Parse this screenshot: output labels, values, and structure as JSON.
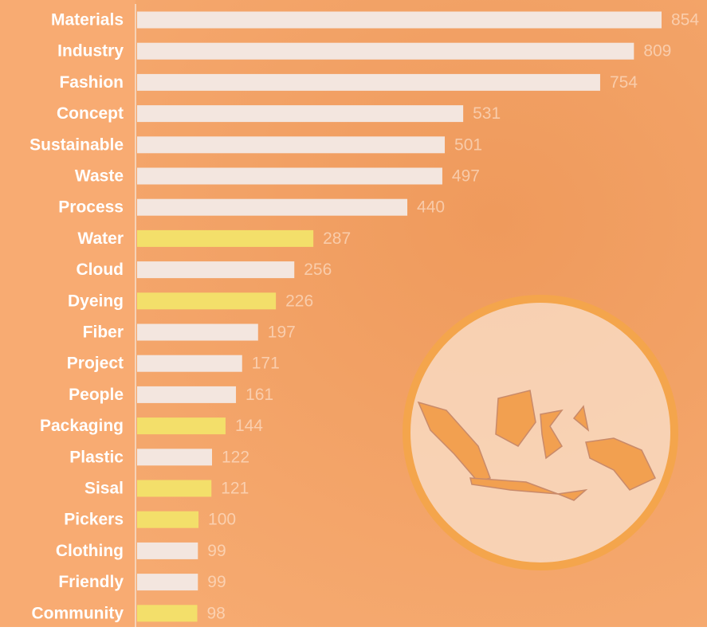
{
  "chart_data": {
    "type": "bar",
    "categories": [
      "Materials",
      "Industry",
      "Fashion",
      "Concept",
      "Sustainable",
      "Waste",
      "Process",
      "Water",
      "Cloud",
      "Dyeing",
      "Fiber",
      "Project",
      "People",
      "Packaging",
      "Plastic",
      "Sisal",
      "Pickers",
      "Clothing",
      "Friendly",
      "Community"
    ],
    "values": [
      854,
      809,
      754,
      531,
      501,
      497,
      440,
      287,
      256,
      226,
      197,
      171,
      161,
      144,
      122,
      121,
      100,
      99,
      99,
      98
    ],
    "colors": [
      "#f3e6df",
      "#f3e6df",
      "#f3e6df",
      "#f3e6df",
      "#f3e6df",
      "#f3e6df",
      "#f3e6df",
      "#f3df6a",
      "#f3e6df",
      "#f3df6a",
      "#f3e6df",
      "#f3e6df",
      "#f3e6df",
      "#f3df6a",
      "#f3e6df",
      "#f3df6a",
      "#f3df6a",
      "#f3e6df",
      "#f3e6df",
      "#f3df6a"
    ]
  }
}
